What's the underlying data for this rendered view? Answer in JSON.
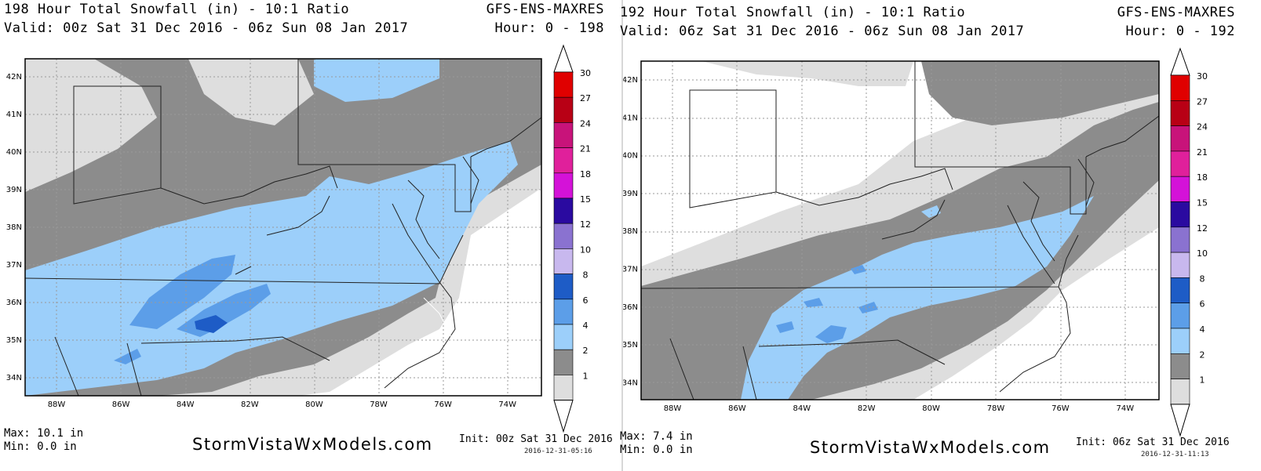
{
  "colorbar": {
    "levels": [
      "30",
      "27",
      "24",
      "21",
      "18",
      "15",
      "12",
      "10",
      "8",
      "6",
      "4",
      "2",
      "1"
    ],
    "colors": [
      "#e00000",
      "#b80015",
      "#c8137a",
      "#e0209b",
      "#d412d8",
      "#2a0aa0",
      "#8a72d0",
      "#c8b8ee",
      "#1e5cc6",
      "#5c9ee8",
      "#9ccffa",
      "#8c8c8c",
      "#dedede"
    ]
  },
  "panels": [
    {
      "title": "198 Hour Total Snowfall (in) - 10:1 Ratio",
      "model": "GFS-ENS-MAXRES",
      "valid": "Valid: 00z Sat 31 Dec 2016 - 06z Sun 08 Jan 2017",
      "hour": "Hour: 0 - 198",
      "max": "Max: 10.1 in",
      "min": "Min: 0.0 in",
      "site": "StormVistaWxModels.com",
      "init": "Init: 00z Sat 31 Dec 2016",
      "stamp": "2016-12-31-05:16",
      "lat_labels": [
        "42N",
        "41N",
        "40N",
        "39N",
        "38N",
        "37N",
        "36N",
        "35N",
        "34N"
      ],
      "lon_labels": [
        "88W",
        "86W",
        "84W",
        "82W",
        "80W",
        "78W",
        "76W",
        "74W"
      ]
    },
    {
      "title": "192 Hour Total Snowfall (in) - 10:1 Ratio",
      "model": "GFS-ENS-MAXRES",
      "valid": "Valid: 06z Sat 31 Dec 2016 - 06z Sun 08 Jan 2017",
      "hour": "Hour: 0 - 192",
      "max": "Max: 7.4 in",
      "min": "Min: 0.0 in",
      "site": "StormVistaWxModels.com",
      "init": "Init: 06z Sat 31 Dec 2016",
      "stamp": "2016-12-31-11:13",
      "lat_labels": [
        "42N",
        "41N",
        "40N",
        "39N",
        "38N",
        "37N",
        "36N",
        "35N",
        "34N"
      ],
      "lon_labels": [
        "88W",
        "86W",
        "84W",
        "82W",
        "80W",
        "78W",
        "76W",
        "74W"
      ]
    }
  ]
}
